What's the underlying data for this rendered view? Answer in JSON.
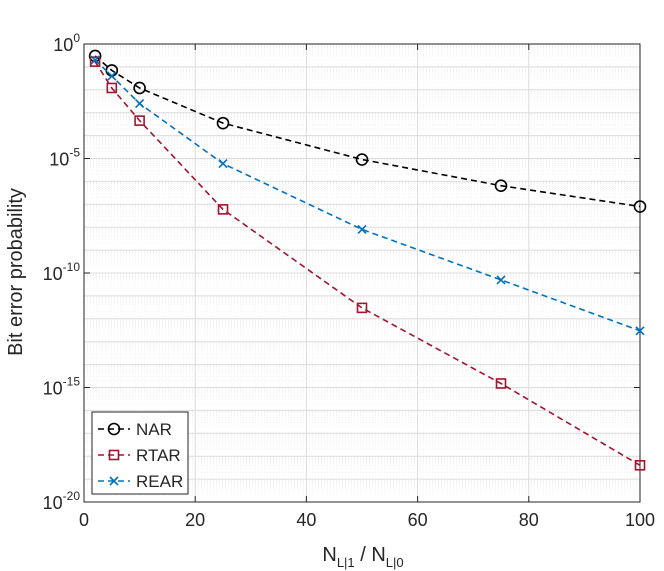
{
  "chart_data": {
    "type": "line",
    "title": "",
    "xlabel_main": "N",
    "xlabel_sub1": "L|1",
    "xlabel_sep": " / N",
    "xlabel_sub0": "L|0",
    "ylabel": "Bit error probability",
    "xlim": [
      0,
      100
    ],
    "ylim_exp": [
      -20,
      0
    ],
    "yscale": "log",
    "grid": true,
    "legend_position": "bottom-left",
    "x_ticks": [
      "0",
      "20",
      "40",
      "60",
      "80",
      "100"
    ],
    "y_tick_base": "10",
    "y_tick_exponents": [
      "0",
      "-5",
      "-10",
      "-15",
      "-20"
    ],
    "x": [
      2,
      5,
      10,
      25,
      50,
      75,
      100
    ],
    "series": [
      {
        "name": "NAR",
        "marker": "circle",
        "color": "#000000",
        "values": [
          0.3,
          0.07,
          0.012,
          0.00035,
          9e-06,
          6.5e-07,
          8e-08
        ]
      },
      {
        "name": "RTAR",
        "marker": "square",
        "color": "#a2142f",
        "values": [
          0.17,
          0.012,
          0.00045,
          6e-08,
          3e-12,
          1.5e-15,
          4e-19
        ]
      },
      {
        "name": "REAR",
        "marker": "cross",
        "color": "#0072bd",
        "values": [
          0.2,
          0.04,
          0.0025,
          6e-06,
          8e-09,
          5e-11,
          3e-13
        ]
      }
    ]
  }
}
